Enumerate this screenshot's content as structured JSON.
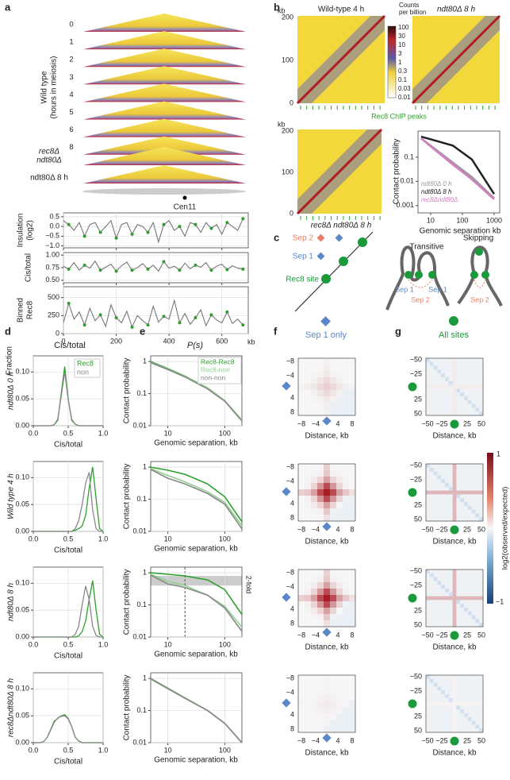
{
  "panels": {
    "a": {
      "letter": "a",
      "hours": [
        "0",
        "1",
        "2",
        "3",
        "4",
        "5",
        "6",
        "8"
      ],
      "wt_label": "Wild type",
      "wt_sub": "(hours in meiosis)",
      "mut1_l1": "rec8Δ",
      "mut1_l2": "ndt80Δ",
      "mut2": "ndt80Δ 8 h",
      "cen": "Cen11",
      "x": [
        0,
        20,
        40,
        60,
        80,
        100,
        120,
        140,
        160,
        180,
        200,
        220,
        240,
        260,
        280,
        300,
        320,
        340,
        360,
        380,
        400,
        420,
        440,
        460,
        480,
        500,
        520,
        540,
        560,
        580,
        600,
        620,
        640,
        660,
        680
      ],
      "xlim": [
        0,
        700
      ],
      "xticks": [
        0,
        200,
        400,
        600
      ],
      "xunit": "kb",
      "tracks": [
        {
          "label": "Insulation",
          "sub": "(log2)",
          "color": "#777777",
          "ylim": [
            -1.1,
            0.7
          ],
          "yticks": [
            0.5,
            {
              "value": 0,
              "label": "0.0"
            },
            {
              "value": -0.5,
              "label": "−0.5"
            },
            {
              "value": -1,
              "label": "−1.0"
            }
          ],
          "values": [
            0.3,
            0.1,
            -0.2,
            0.2,
            -0.5,
            0.1,
            0.2,
            -0.3,
            0.0,
            0.3,
            -0.6,
            0.1,
            0.2,
            -0.4,
            0.1,
            0.0,
            -0.3,
            0.2,
            -0.8,
            0.1,
            0.3,
            -0.2,
            0.0,
            -0.5,
            0.2,
            0.1,
            -0.3,
            0.2,
            -0.1,
            0.1,
            -0.4,
            0.2,
            0.0,
            -0.2,
            0.4
          ]
        },
        {
          "label": "Cis/total",
          "sub": null,
          "color": "#777777",
          "ylim": [
            0.45,
            1.05
          ],
          "yticks": [
            {
              "value": 1,
              "label": "1.00"
            },
            {
              "value": 0.75,
              "label": "0.75"
            },
            {
              "value": 0.5,
              "label": "0.50"
            }
          ],
          "values": [
            0.78,
            0.72,
            0.85,
            0.7,
            0.8,
            0.74,
            0.88,
            0.7,
            0.76,
            0.82,
            0.68,
            0.79,
            0.86,
            0.7,
            0.75,
            0.83,
            0.72,
            0.8,
            0.68,
            0.87,
            0.74,
            0.78,
            0.7,
            0.84,
            0.73,
            0.8,
            0.76,
            0.85,
            0.7,
            0.78,
            0.82,
            0.71,
            0.79,
            0.74,
            0.72
          ]
        },
        {
          "label": "Binned",
          "sub": "Rec8",
          "color": "#777777",
          "ylim": [
            0,
            650
          ],
          "yticks": [
            500,
            250,
            0
          ],
          "values": [
            150,
            420,
            200,
            300,
            120,
            350,
            180,
            260,
            100,
            400,
            220,
            150,
            310,
            90,
            250,
            180,
            120,
            380,
            160,
            240,
            200,
            460,
            150,
            280,
            130,
            220,
            330,
            110,
            260,
            190,
            150,
            300,
            140,
            200,
            120
          ]
        }
      ]
    },
    "b": {
      "letter": "b",
      "kb": "kb",
      "titles": [
        "Wild-type 4 h",
        "ndt80Δ 8 h",
        "rec8Δ ndt80Δ 8 h"
      ],
      "hm_ticks": [
        200,
        100,
        0
      ],
      "cbar_title": [
        "Counts",
        "per billion"
      ],
      "cbar": [
        100,
        30,
        10,
        3,
        1,
        0.3,
        0.1,
        0.03,
        0.01
      ],
      "chip": "Rec8 ChIP peaks",
      "pc": {
        "ylabel": "Contact probability",
        "xlabel": "Genomic separation kb",
        "xlim": [
          4,
          1500
        ],
        "ylim": [
          0.0005,
          1.2
        ],
        "xticks": [
          10,
          100,
          1000
        ],
        "yticks": [
          0.1,
          0.01,
          0.001
        ],
        "x": [
          5,
          10,
          50,
          200,
          1000
        ],
        "series": [
          {
            "name": "ndt80Δ 0 h",
            "color": "#9a9a9a",
            "values": [
              0.6,
              0.3,
              0.06,
              0.015,
              0.002
            ]
          },
          {
            "name": "ndt80Δ 8 h",
            "color": "#222222",
            "values": [
              0.7,
              0.55,
              0.3,
              0.08,
              0.003
            ]
          },
          {
            "name": "rec8Δndt80Δ",
            "color": "#d47fc4",
            "values": [
              0.6,
              0.28,
              0.05,
              0.012,
              0.0018
            ]
          }
        ]
      }
    },
    "c": {
      "letter": "c",
      "sep2": "Sep 2",
      "sep1": "Sep 1",
      "site": "Rec8 site",
      "transitive": "Transitive",
      "skipping": "Skipping"
    },
    "d": {
      "letter": "d",
      "title": "Cis/total",
      "ylabel": "Fraction",
      "xlabel": "Cis/total",
      "xlim": [
        0,
        1
      ],
      "ylim": [
        0,
        0.13
      ],
      "xticks": [
        {
          "value": 0,
          "label": "0.0"
        },
        0.5,
        {
          "value": 1,
          "label": "1.0"
        }
      ],
      "yticks": [
        {
          "value": 0,
          "label": "0.00"
        },
        {
          "value": 0.05,
          "label": "0.05"
        },
        {
          "value": 0.1,
          "label": "0.10"
        }
      ],
      "x": [
        0,
        0.05,
        0.1,
        0.15,
        0.2,
        0.25,
        0.3,
        0.35,
        0.4,
        0.45,
        0.5,
        0.55,
        0.6,
        0.65,
        0.7,
        0.75,
        0.8,
        0.85,
        0.9,
        0.95,
        1
      ],
      "rows": [
        {
          "name": "ndt80Δ 0 h",
          "series": [
            {
              "name": "Rec8",
              "color": "#2ca02c",
              "values": [
                0,
                0,
                0,
                0,
                0,
                0,
                0.002,
                0.01,
                0.06,
                0.11,
                0.05,
                0.01,
                0.003,
                0,
                0,
                0,
                0,
                0,
                0,
                0,
                0
              ]
            },
            {
              "name": "non",
              "color": "#888888",
              "values": [
                0,
                0,
                0,
                0,
                0,
                0,
                0.002,
                0.012,
                0.055,
                0.1,
                0.048,
                0.012,
                0.003,
                0,
                0,
                0,
                0,
                0,
                0,
                0,
                0
              ]
            }
          ]
        },
        {
          "name": "Wild type 4 h",
          "series": [
            {
              "name": "Rec8",
              "color": "#2ca02c",
              "values": [
                0,
                0,
                0,
                0,
                0,
                0,
                0,
                0,
                0,
                0,
                0,
                0,
                0.002,
                0.005,
                0.01,
                0.03,
                0.08,
                0.12,
                0.06,
                0.005,
                0
              ]
            },
            {
              "name": "non",
              "color": "#888888",
              "values": [
                0,
                0,
                0,
                0,
                0,
                0,
                0,
                0,
                0,
                0,
                0,
                0,
                0.005,
                0.02,
                0.05,
                0.09,
                0.11,
                0.04,
                0.005,
                0,
                0
              ]
            }
          ]
        },
        {
          "name": "ndt80Δ 8 h",
          "series": [
            {
              "name": "Rec8",
              "color": "#2ca02c",
              "values": [
                0,
                0,
                0,
                0,
                0,
                0,
                0,
                0,
                0,
                0,
                0,
                0,
                0,
                0.002,
                0.01,
                0.03,
                0.07,
                0.105,
                0.05,
                0.005,
                0
              ]
            },
            {
              "name": "non",
              "color": "#888888",
              "values": [
                0,
                0,
                0,
                0,
                0,
                0,
                0,
                0,
                0,
                0,
                0,
                0,
                0.005,
                0.02,
                0.06,
                0.095,
                0.07,
                0.02,
                0.003,
                0,
                0
              ]
            }
          ]
        },
        {
          "name": "rec8Δndt80Δ 8 h",
          "series": [
            {
              "name": "Rec8",
              "color": "#2ca02c",
              "values": [
                0,
                0,
                0,
                0.002,
                0.01,
                0.025,
                0.04,
                0.045,
                0.05,
                0.052,
                0.045,
                0.03,
                0.01,
                0.003,
                0,
                0,
                0,
                0,
                0,
                0,
                0
              ]
            },
            {
              "name": "non",
              "color": "#888888",
              "values": [
                0,
                0,
                0,
                0.002,
                0.01,
                0.024,
                0.038,
                0.046,
                0.049,
                0.05,
                0.044,
                0.03,
                0.01,
                0.003,
                0,
                0,
                0,
                0,
                0,
                0,
                0
              ]
            }
          ]
        }
      ]
    },
    "e": {
      "letter": "e",
      "title": "P(s)",
      "ylabel": "Contact probability",
      "xlabel": "Genomic separation, kb",
      "xlim": [
        5,
        200
      ],
      "ylim": [
        0.01,
        1.5
      ],
      "xticks": [
        10,
        100
      ],
      "yticks": [
        1,
        0.1,
        0.01
      ],
      "fold": "2-fold",
      "x": [
        5,
        10,
        20,
        50,
        100,
        200
      ],
      "rows": [
        {
          "series": [
            {
              "name": "Rec8-Rec8",
              "color": "#2ca02c",
              "values": [
                1,
                0.6,
                0.35,
                0.15,
                0.06,
                0.015
              ]
            },
            {
              "name": "Rec8-non",
              "color": "#8fcf8f",
              "values": [
                0.95,
                0.58,
                0.34,
                0.15,
                0.06,
                0.015
              ]
            },
            {
              "name": "non-non",
              "color": "#888888",
              "values": [
                0.92,
                0.56,
                0.33,
                0.14,
                0.058,
                0.014
              ]
            }
          ]
        },
        {
          "series": [
            {
              "name": "Rec8-Rec8",
              "color": "#2ca02c",
              "values": [
                1,
                0.8,
                0.6,
                0.3,
                0.12,
                0.02
              ]
            },
            {
              "name": "Rec8-non",
              "color": "#8fcf8f",
              "values": [
                0.9,
                0.55,
                0.35,
                0.17,
                0.08,
                0.015
              ]
            },
            {
              "name": "non-non",
              "color": "#888888",
              "values": [
                0.85,
                0.45,
                0.3,
                0.15,
                0.07,
                0.012
              ]
            }
          ]
        },
        {
          "series": [
            {
              "name": "Rec8-Rec8",
              "color": "#2ca02c",
              "values": [
                1,
                0.9,
                0.8,
                0.6,
                0.3,
                0.05
              ]
            },
            {
              "name": "Rec8-non",
              "color": "#8fcf8f",
              "values": [
                0.9,
                0.55,
                0.4,
                0.2,
                0.09,
                0.02
              ]
            },
            {
              "name": "non-non",
              "color": "#888888",
              "values": [
                0.85,
                0.45,
                0.35,
                0.2,
                0.08,
                0.015
              ]
            }
          ]
        },
        {
          "series": [
            {
              "name": "Rec8-Rec8",
              "color": "#2ca02c",
              "values": [
                1,
                0.5,
                0.25,
                0.1,
                0.04,
                0.01
              ]
            },
            {
              "name": "Rec8-non",
              "color": "#8fcf8f",
              "values": [
                0.98,
                0.49,
                0.25,
                0.1,
                0.04,
                0.01
              ]
            },
            {
              "name": "non-non",
              "color": "#888888",
              "values": [
                0.96,
                0.48,
                0.24,
                0.1,
                0.04,
                0.01
              ]
            }
          ]
        }
      ]
    },
    "f": {
      "letter": "f",
      "title": "Sep 1 only",
      "ticks": [
        "−8",
        "−4",
        "4",
        "8"
      ],
      "xlabel": "Distance, kb"
    },
    "g": {
      "letter": "g",
      "title": "All sites",
      "ticks": [
        "−50",
        "−25",
        "25",
        "50"
      ],
      "xlabel": "Distance, kb",
      "cbar_max": "1",
      "cbar_min": "−1",
      "cbar_label": "log2(observed/expected)"
    }
  }
}
